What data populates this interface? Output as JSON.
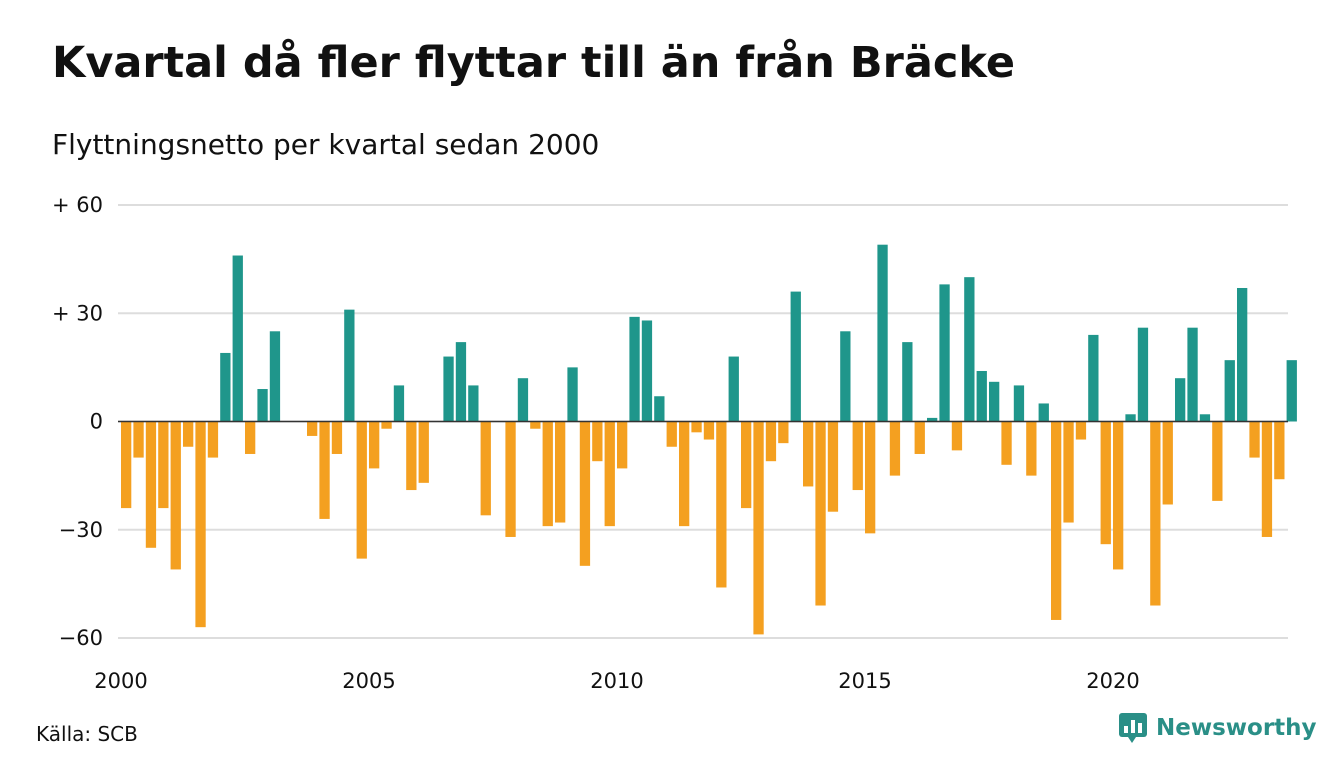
{
  "title": "Kvartal då fler flyttar till än från Bräcke",
  "subtitle": "Flyttningsnetto per kvartal sedan 2000",
  "source": "Källa: SCB",
  "brand": "Newsworthy",
  "colors": {
    "positive": "#1f968b",
    "negative": "#f4a020",
    "grid": "#dddddd",
    "axis": "#333333"
  },
  "chart_data": {
    "type": "bar",
    "title": "Kvartal då fler flyttar till än från Bräcke",
    "subtitle": "Flyttningsnetto per kvartal sedan 2000",
    "xlabel": "",
    "ylabel": "",
    "ylim": [
      -60,
      60
    ],
    "yticks": [
      {
        "value": 60,
        "label": "+ 60"
      },
      {
        "value": 30,
        "label": "+ 30"
      },
      {
        "value": 0,
        "label": "0"
      },
      {
        "value": -30,
        "label": "−30"
      },
      {
        "value": -60,
        "label": "−60"
      }
    ],
    "xticks": [
      {
        "value": 2000,
        "label": "2000"
      },
      {
        "value": 2005,
        "label": "2005"
      },
      {
        "value": 2010,
        "label": "2010"
      },
      {
        "value": 2015,
        "label": "2015"
      },
      {
        "value": 2020,
        "label": "2020"
      }
    ],
    "start_year": 2000,
    "grid": true,
    "legend": "none",
    "values": [
      -24,
      -10,
      -35,
      -24,
      -41,
      -7,
      -57,
      -10,
      19,
      46,
      -9,
      9,
      25,
      0,
      0,
      -4,
      -27,
      -9,
      31,
      -38,
      -13,
      -2,
      10,
      -19,
      -17,
      0,
      18,
      22,
      10,
      -26,
      0,
      -32,
      12,
      -2,
      -29,
      -28,
      15,
      -40,
      -11,
      -29,
      -13,
      29,
      28,
      7,
      -7,
      -29,
      -3,
      -5,
      -46,
      18,
      -24,
      -59,
      -11,
      -6,
      36,
      -18,
      -51,
      -25,
      25,
      -19,
      -31,
      49,
      -15,
      22,
      -9,
      1,
      38,
      -8,
      40,
      14,
      11,
      -12,
      10,
      -15,
      5,
      -55,
      -28,
      -5,
      24,
      -34,
      -41,
      2,
      26,
      -51,
      -23,
      12,
      26,
      2,
      -22,
      17,
      37,
      -10,
      -32,
      -16,
      17
    ]
  }
}
